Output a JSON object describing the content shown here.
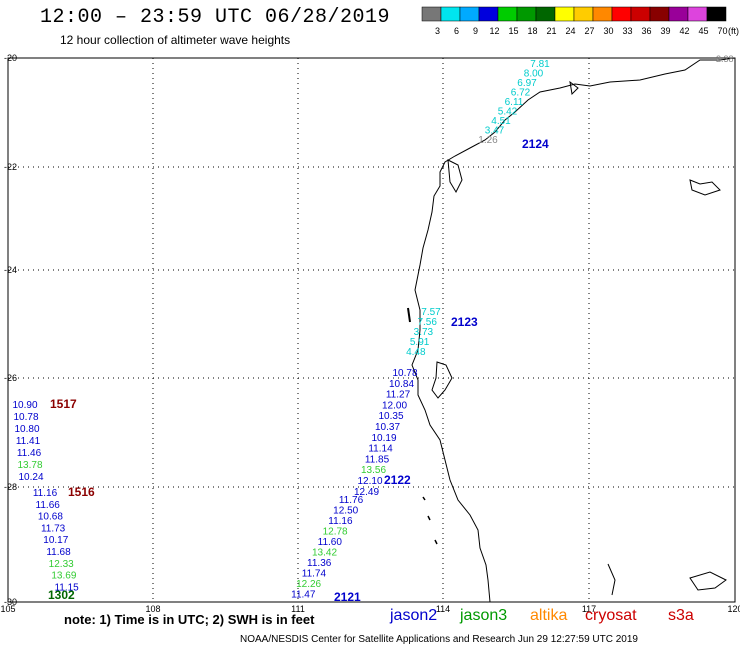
{
  "header": {
    "title": "12:00 – 23:59 UTC 06/28/2019",
    "subtitle": "12 hour collection of altimeter wave heights"
  },
  "legend": {
    "bins": [
      {
        "label": "3",
        "color": "#777777"
      },
      {
        "label": "6",
        "color": "#00e5ee"
      },
      {
        "label": "9",
        "color": "#00aaff"
      },
      {
        "label": "12",
        "color": "#0000dd"
      },
      {
        "label": "15",
        "color": "#00cc00"
      },
      {
        "label": "18",
        "color": "#009900"
      },
      {
        "label": "21",
        "color": "#006600"
      },
      {
        "label": "24",
        "color": "#ffff00"
      },
      {
        "label": "27",
        "color": "#ffcc00"
      },
      {
        "label": "30",
        "color": "#ff8800"
      },
      {
        "label": "33",
        "color": "#ff0000"
      },
      {
        "label": "36",
        "color": "#cc0000"
      },
      {
        "label": "39",
        "color": "#880000"
      },
      {
        "label": "42",
        "color": "#990099"
      },
      {
        "label": "45",
        "color": "#dd44dd"
      },
      {
        "label": "70",
        "color": "#000000"
      }
    ],
    "unit": "(ft)"
  },
  "axes": {
    "lon_labels": [
      "105",
      "108",
      "111",
      "114",
      "117",
      "120"
    ],
    "lat_labels": [
      "-20",
      "-22",
      "-24",
      "-26",
      "-28",
      "-30"
    ]
  },
  "tracks": [
    {
      "pass_id": "2124",
      "points": [
        {
          "v": "7.81",
          "c": "#00cccc"
        },
        {
          "v": "8.00",
          "c": "#00cccc"
        },
        {
          "v": "6.97",
          "c": "#00cccc"
        },
        {
          "v": "6.72",
          "c": "#00cccc"
        },
        {
          "v": "6.11",
          "c": "#00cccc"
        },
        {
          "v": "5.42",
          "c": "#00cccc"
        },
        {
          "v": "4.51",
          "c": "#00cccc"
        },
        {
          "v": "3.47",
          "c": "#00cccc"
        },
        {
          "v": "1.26",
          "c": "#888888"
        }
      ]
    },
    {
      "pass_id": "2123",
      "points": [
        {
          "v": "7.57",
          "c": "#00cccc"
        },
        {
          "v": "7.56",
          "c": "#00cccc"
        },
        {
          "v": "3.73",
          "c": "#00cccc"
        },
        {
          "v": "5.91",
          "c": "#00cccc"
        },
        {
          "v": "4.48",
          "c": "#00cccc"
        }
      ]
    },
    {
      "pass_id": "2122",
      "points": [
        {
          "v": "10.78",
          "c": "#0000cc"
        },
        {
          "v": "10.84",
          "c": "#0000cc"
        },
        {
          "v": "11.27",
          "c": "#0000cc"
        },
        {
          "v": "12.00",
          "c": "#0000cc"
        },
        {
          "v": "10.35",
          "c": "#0000cc"
        },
        {
          "v": "10.37",
          "c": "#0000cc"
        },
        {
          "v": "10.19",
          "c": "#0000cc"
        },
        {
          "v": "11.14",
          "c": "#0000cc"
        },
        {
          "v": "11.85",
          "c": "#0000cc"
        },
        {
          "v": "13.56",
          "c": "#33cc33"
        },
        {
          "v": "12.10",
          "c": "#0000cc"
        },
        {
          "v": "12.49",
          "c": "#0000cc"
        }
      ]
    },
    {
      "pass_id": "2121",
      "points": [
        {
          "v": "11.76",
          "c": "#0000cc"
        },
        {
          "v": "12.50",
          "c": "#0000cc"
        },
        {
          "v": "11.16",
          "c": "#0000cc"
        },
        {
          "v": "12.78",
          "c": "#33cc33"
        },
        {
          "v": "11.60",
          "c": "#0000cc"
        },
        {
          "v": "13.42",
          "c": "#33cc33"
        },
        {
          "v": "11.36",
          "c": "#0000cc"
        },
        {
          "v": "11.74",
          "c": "#0000cc"
        },
        {
          "v": "12.26",
          "c": "#33cc33"
        },
        {
          "v": "11.47",
          "c": "#0000cc"
        }
      ]
    },
    {
      "pass_id": "1517",
      "points": [
        {
          "v": "10.90",
          "c": "#0000cc"
        },
        {
          "v": "10.78",
          "c": "#0000cc"
        },
        {
          "v": "10.80",
          "c": "#0000cc"
        },
        {
          "v": "11.41",
          "c": "#0000cc"
        },
        {
          "v": "11.46",
          "c": "#0000cc"
        },
        {
          "v": "13.78",
          "c": "#33cc33"
        },
        {
          "v": "10.24",
          "c": "#0000cc"
        }
      ]
    },
    {
      "pass_id": "1516",
      "points": [
        {
          "v": "11.16",
          "c": "#0000cc"
        },
        {
          "v": "11.66",
          "c": "#0000cc"
        },
        {
          "v": "10.68",
          "c": "#0000cc"
        },
        {
          "v": "11.73",
          "c": "#0000cc"
        },
        {
          "v": "10.17",
          "c": "#0000cc"
        },
        {
          "v": "11.68",
          "c": "#0000cc"
        },
        {
          "v": "12.33",
          "c": "#33cc33"
        },
        {
          "v": "13.69",
          "c": "#33cc33"
        },
        {
          "v": "11.15",
          "c": "#0000cc"
        }
      ]
    },
    {
      "pass_id": "1302",
      "points": []
    }
  ],
  "pass_colors": {
    "2124": "#0000cc",
    "2123": "#0000cc",
    "2122": "#0000cc",
    "2121": "#0000cc",
    "1517": "#8b0000",
    "1516": "#8b0000",
    "1302": "#006600"
  },
  "corner_value": "2.38",
  "satellites": [
    {
      "name": "jason2",
      "color": "#0000cc"
    },
    {
      "name": "jason3",
      "color": "#009900"
    },
    {
      "name": "altika",
      "color": "#ff8800"
    },
    {
      "name": "cryosat",
      "color": "#cc0000"
    },
    {
      "name": "s3a",
      "color": "#cc0000"
    }
  ],
  "footer": {
    "note": "note: 1) Time is in UTC; 2) SWH is in feet",
    "credit": "NOAA/NESDIS Center for Satellite Applications and Research    Jun 29 12:27:59 UTC 2019"
  }
}
